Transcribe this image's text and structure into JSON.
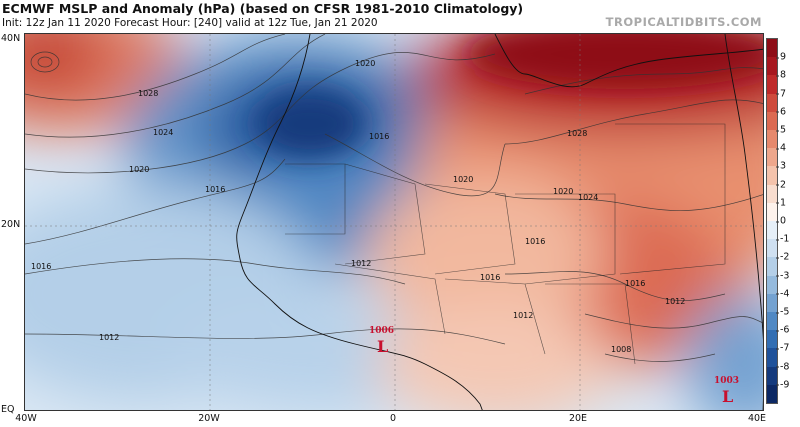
{
  "header": {
    "title": "ECMWF MSLP and Anomaly (hPa) (based on CFSR 1981-2010 Climatology)",
    "subtitle": "Init: 12z Jan 11 2020   Forecast Hour: [240]   valid at 12z Tue, Jan 21 2020",
    "site": "TROPICALTIDBITS.COM"
  },
  "axes": {
    "lat_labels": [
      "40N",
      "20N",
      "EQ"
    ],
    "lon_labels": [
      "40W",
      "20W",
      "0",
      "20E",
      "40E"
    ]
  },
  "isobar_labels": [
    "1028",
    "1024",
    "1020",
    "1016",
    "1012",
    "1016",
    "1020",
    "1016",
    "1020",
    "1012",
    "1016",
    "1020",
    "1024",
    "1028",
    "1016",
    "1012",
    "1008",
    "1016",
    "1012"
  ],
  "pressure_centers": [
    {
      "value": "1006",
      "letter": "L"
    },
    {
      "value": "1003",
      "letter": "L"
    }
  ],
  "colorbar": {
    "ticks": [
      "9",
      "8",
      "7",
      "6",
      "5",
      "4",
      "3",
      "2",
      "1",
      "0",
      "-1",
      "-2",
      "-3",
      "-4",
      "-5",
      "-6",
      "-7",
      "-8",
      "-9"
    ],
    "colors": [
      "#8e0d17",
      "#a7171f",
      "#bf2a2a",
      "#cf4b3d",
      "#dc6a52",
      "#e6896d",
      "#eea78c",
      "#f4c3ac",
      "#f8ddcf",
      "#fdf2ec",
      "#e6eff8",
      "#cfe0f1",
      "#b4cfe8",
      "#95badd",
      "#74a2d1",
      "#5189c4",
      "#326eb3",
      "#1f529b",
      "#143a7d",
      "#0c2864"
    ]
  }
}
